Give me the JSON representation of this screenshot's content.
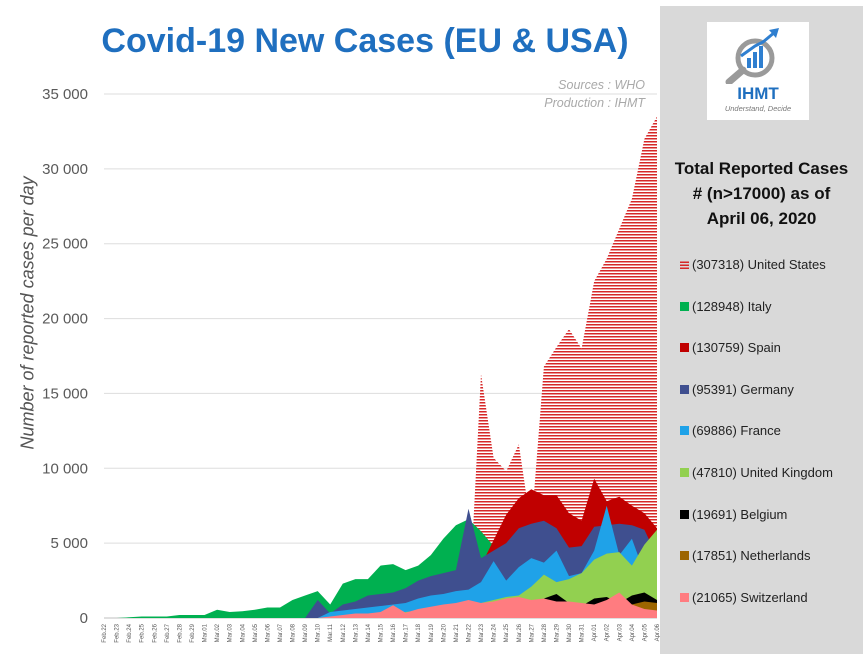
{
  "chart_data": {
    "type": "area",
    "title": "Covid-19 New Cases (EU & USA)",
    "sources": [
      "Sources : WHO",
      "Production : IHMT"
    ],
    "ylabel": "Number of reported cases per day",
    "xlabel": "",
    "ylim": [
      0,
      35000
    ],
    "yticks": [
      0,
      5000,
      10000,
      15000,
      20000,
      25000,
      30000,
      35000
    ],
    "ytick_labels": [
      "0",
      "5 000",
      "10 000",
      "15 000",
      "20 000",
      "25 000",
      "30 000",
      "35 000"
    ],
    "categories": [
      "Feb.22",
      "Feb.23",
      "Feb.24",
      "Feb.25",
      "Feb.26",
      "Feb.27",
      "Feb.28",
      "Feb.29",
      "Mar.01",
      "Mar.02",
      "Mar.03",
      "Mar.04",
      "Mar.05",
      "Mar.06",
      "Mar.07",
      "Mar.08",
      "Mar.09",
      "Mar.10",
      "Mar.11",
      "Mar.12",
      "Mar.13",
      "Mar.14",
      "Mar.15",
      "Mar.16",
      "Mar.17",
      "Mar.18",
      "Mar.19",
      "Mar.20",
      "Mar.21",
      "Mar.22",
      "Mar.23",
      "Mar.24",
      "Mar.25",
      "Mar.26",
      "Mar.27",
      "Mar.28",
      "Mar.29",
      "Mar.30",
      "Mar.31",
      "Apr.01",
      "Apr.02",
      "Apr.03",
      "Apr.04",
      "Apr.05",
      "Apr.06"
    ],
    "series": [
      {
        "name": "United States",
        "total": 307318,
        "color": "#d62728",
        "pattern": "stripes",
        "values": [
          0,
          0,
          0,
          0,
          0,
          0,
          0,
          0,
          0,
          0,
          0,
          0,
          0,
          0,
          0,
          0,
          0,
          0,
          0,
          0,
          0,
          0,
          0,
          0,
          0,
          0,
          0,
          0,
          0,
          0,
          16300,
          10700,
          9800,
          11600,
          6000,
          16800,
          18100,
          19300,
          18000,
          22500,
          24000,
          26000,
          28000,
          32000,
          33500
        ]
      },
      {
        "name": "Italy",
        "total": 128948,
        "color": "#00b050",
        "values": [
          0,
          0,
          50,
          100,
          100,
          100,
          200,
          200,
          200,
          550,
          400,
          450,
          550,
          700,
          700,
          1200,
          1500,
          1800,
          900,
          2300,
          2600,
          2600,
          3500,
          3600,
          3200,
          3500,
          4200,
          5300,
          6200,
          6600,
          5800,
          4800,
          5200,
          5300,
          6200,
          5900,
          5200,
          4100,
          4000,
          4800,
          4600,
          4600,
          4700,
          4300,
          3600
        ]
      },
      {
        "name": "Spain",
        "total": 130759,
        "color": "#c00000",
        "values": [
          0,
          0,
          0,
          0,
          0,
          0,
          0,
          0,
          0,
          0,
          0,
          0,
          0,
          0,
          0,
          0,
          0,
          0,
          0,
          0,
          0,
          0,
          0,
          0,
          400,
          1200,
          1800,
          2600,
          2800,
          3200,
          3500,
          5200,
          6900,
          8000,
          8600,
          8200,
          8200,
          7000,
          6500,
          9300,
          7800,
          8100,
          7500,
          7000,
          6000
        ]
      },
      {
        "name": "Germany",
        "total": 95391,
        "color": "#3f4f8f",
        "values": [
          0,
          0,
          0,
          0,
          0,
          0,
          0,
          0,
          0,
          0,
          0,
          0,
          0,
          0,
          0,
          0,
          0,
          1200,
          300,
          900,
          1100,
          1500,
          1600,
          1700,
          2000,
          2500,
          2800,
          3000,
          3200,
          7300,
          4000,
          4500,
          5000,
          6000,
          6300,
          6500,
          6000,
          4700,
          4800,
          6100,
          6200,
          6300,
          6200,
          5900,
          4100
        ]
      },
      {
        "name": "France",
        "total": 69886,
        "color": "#1fa2e8",
        "values": [
          0,
          0,
          0,
          0,
          0,
          0,
          0,
          0,
          0,
          0,
          0,
          0,
          0,
          0,
          0,
          0,
          0,
          0,
          400,
          500,
          600,
          700,
          800,
          900,
          1000,
          1300,
          1500,
          1600,
          1800,
          1900,
          2400,
          3800,
          2500,
          3400,
          4000,
          3700,
          4500,
          2800,
          3000,
          4500,
          7500,
          4200,
          5300,
          3000,
          4200
        ]
      },
      {
        "name": "United Kingdom",
        "total": 47810,
        "color": "#92d050",
        "values": [
          0,
          0,
          0,
          0,
          0,
          0,
          0,
          0,
          0,
          0,
          0,
          0,
          0,
          0,
          0,
          0,
          0,
          0,
          0,
          0,
          0,
          100,
          200,
          300,
          400,
          500,
          600,
          700,
          800,
          900,
          1000,
          1200,
          1400,
          1500,
          2100,
          2900,
          2400,
          2600,
          3000,
          3900,
          4300,
          4400,
          3500,
          4900,
          5900
        ]
      },
      {
        "name": "Belgium",
        "total": 19691,
        "color": "#000000",
        "values": [
          0,
          0,
          0,
          0,
          0,
          0,
          0,
          0,
          0,
          0,
          0,
          0,
          0,
          0,
          0,
          0,
          0,
          0,
          0,
          0,
          0,
          0,
          0,
          0,
          0,
          0,
          0,
          0,
          0,
          0,
          200,
          300,
          400,
          500,
          600,
          1300,
          1600,
          1000,
          800,
          1300,
          1400,
          1000,
          1500,
          1700,
          1200
        ]
      },
      {
        "name": "Netherlands",
        "total": 17851,
        "color": "#9c6500",
        "values": [
          0,
          0,
          0,
          0,
          0,
          0,
          0,
          0,
          0,
          0,
          0,
          0,
          0,
          0,
          0,
          0,
          0,
          0,
          0,
          0,
          0,
          0,
          0,
          0,
          0,
          0,
          0,
          0,
          0,
          0,
          0,
          0,
          0,
          0,
          0,
          0,
          0,
          0,
          0,
          0,
          0,
          0,
          900,
          1100,
          1000
        ]
      },
      {
        "name": "Switzerland",
        "total": 21065,
        "color": "#ff7c80",
        "values": [
          0,
          0,
          0,
          0,
          0,
          0,
          0,
          0,
          0,
          0,
          0,
          0,
          0,
          0,
          0,
          0,
          0,
          0,
          100,
          200,
          300,
          300,
          400,
          850,
          350,
          600,
          750,
          900,
          1000,
          1200,
          1000,
          1100,
          1300,
          1400,
          1200,
          1300,
          1100,
          1100,
          1000,
          900,
          1200,
          1700,
          900,
          600,
          500
        ]
      }
    ]
  },
  "panel": {
    "logo_text": "IHMT",
    "logo_tagline": "Understand, Decide",
    "title_lines": [
      "Total Reported Cases",
      "# (n>17000) as of",
      "April 06, 2020"
    ],
    "legend": [
      {
        "label": "(307318) United States",
        "color": "#d62728"
      },
      {
        "label": "(128948) Italy",
        "color": "#00b050"
      },
      {
        "label": "(130759) Spain",
        "color": "#c00000"
      },
      {
        "label": "(95391) Germany",
        "color": "#3f4f8f"
      },
      {
        "label": "(69886) France",
        "color": "#1fa2e8"
      },
      {
        "label": "(47810) United Kingdom",
        "color": "#92d050"
      },
      {
        "label": "(19691) Belgium",
        "color": "#000000"
      },
      {
        "label": "(17851) Netherlands",
        "color": "#9c6500"
      },
      {
        "label": "(21065) Switzerland",
        "color": "#ff7c80"
      }
    ]
  }
}
